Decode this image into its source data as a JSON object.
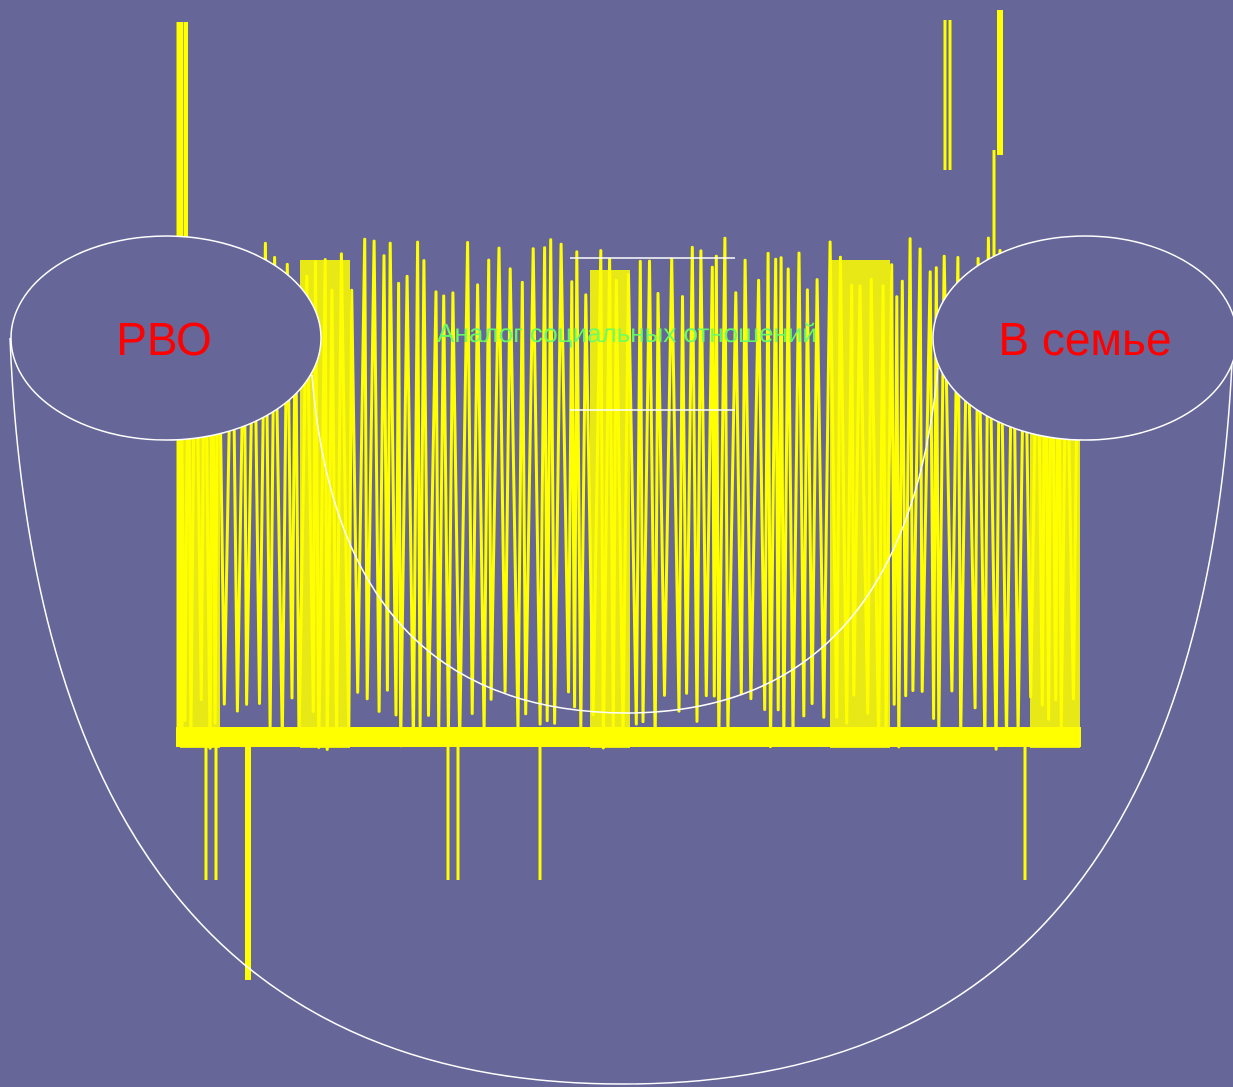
{
  "colors": {
    "background": "#666699",
    "outline": "#ffffff",
    "node_text": "#ff0000",
    "center_text": "#66ff66",
    "scribble": "#ffff00"
  },
  "nodes": {
    "left": {
      "label": "РВО"
    },
    "right": {
      "label": "В семье"
    }
  },
  "center": {
    "label": "Аналог социальных отношений"
  }
}
